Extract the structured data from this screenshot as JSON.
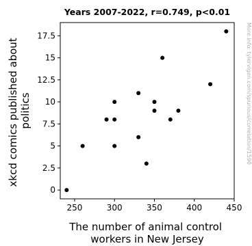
{
  "chart_data": {
    "type": "scatter",
    "title": "Years 2007-2022, r=0.749, p<0.01",
    "xlabel": [
      "The number of animal control",
      "workers in New Jersey"
    ],
    "ylabel": [
      "xkcd comics published about",
      "politics"
    ],
    "xlim": [
      232,
      450
    ],
    "ylim": [
      -1,
      19
    ],
    "x_ticks": [
      250,
      300,
      350,
      400,
      450
    ],
    "x_tick_labels": [
      "250",
      "300",
      "350",
      "400",
      "450"
    ],
    "y_ticks": [
      0,
      2.5,
      5,
      7.5,
      10,
      12.5,
      15,
      17.5
    ],
    "y_tick_labels": [
      "0",
      "2.5",
      "5",
      "7.5",
      "10",
      "12.5",
      "15",
      "17.5"
    ],
    "grid": false,
    "point_color": "#000000",
    "points": [
      {
        "x": 240,
        "y": 0
      },
      {
        "x": 260,
        "y": 5
      },
      {
        "x": 290,
        "y": 8
      },
      {
        "x": 300,
        "y": 10
      },
      {
        "x": 300,
        "y": 8
      },
      {
        "x": 300,
        "y": 5
      },
      {
        "x": 330,
        "y": 11
      },
      {
        "x": 330,
        "y": 6
      },
      {
        "x": 340,
        "y": 3
      },
      {
        "x": 350,
        "y": 10
      },
      {
        "x": 350,
        "y": 9
      },
      {
        "x": 360,
        "y": 15
      },
      {
        "x": 370,
        "y": 8
      },
      {
        "x": 380,
        "y": 9
      },
      {
        "x": 420,
        "y": 12
      },
      {
        "x": 440,
        "y": 18
      }
    ]
  },
  "watermark": "More info: tylervigen.com/spurious/correlation/1590"
}
